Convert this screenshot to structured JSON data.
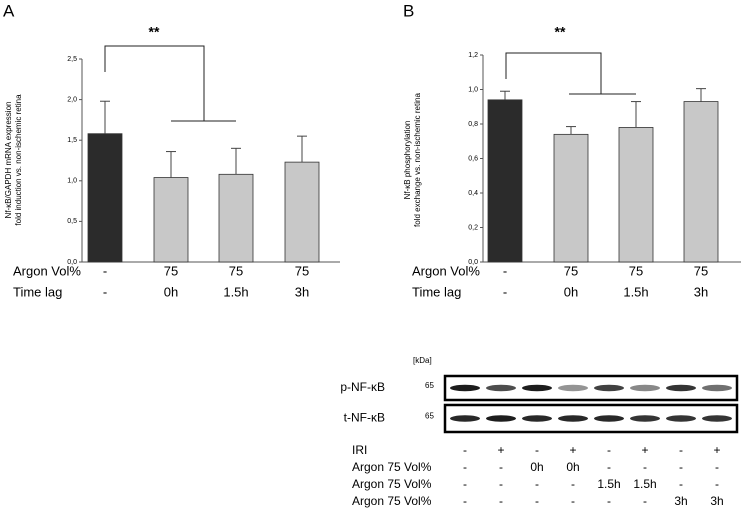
{
  "chart_data": [
    {
      "type": "bar",
      "panel": "A",
      "annotation": "**",
      "ylabel": [
        "Nf-κB/GAPDH mRNA expression",
        "fold induction vs. non-ischemic retina"
      ],
      "category_rows": [
        {
          "label": "Argon Vol%",
          "values": [
            "-",
            "75",
            "75",
            "75"
          ]
        },
        {
          "label": "Time lag",
          "values": [
            "-",
            "0h",
            "1.5h",
            "3h"
          ]
        }
      ],
      "values": [
        1.58,
        1.04,
        1.08,
        1.23
      ],
      "errors": [
        0.4,
        0.32,
        0.32,
        0.32
      ],
      "colors": [
        "#2b2b2b",
        "#c8c8c8",
        "#c8c8c8",
        "#c8c8c8"
      ],
      "ylim": [
        0,
        2.5
      ],
      "yticks": [
        {
          "value": 0,
          "label": "0,0"
        },
        {
          "value": 0.5,
          "label": "0,5"
        },
        {
          "value": 1,
          "label": "1,0"
        },
        {
          "value": 1.5,
          "label": "1,5"
        },
        {
          "value": 2,
          "label": "2,0"
        },
        {
          "value": 2.5,
          "label": "2,5"
        }
      ]
    },
    {
      "type": "bar",
      "panel": "B",
      "annotation": "**",
      "ylabel": [
        "Nf-κB phosphorylation",
        "fold exchange vs. non-ischemic retina"
      ],
      "category_rows": [
        {
          "label": "Argon Vol%",
          "values": [
            "-",
            "75",
            "75",
            "75"
          ]
        },
        {
          "label": "Time lag",
          "values": [
            "-",
            "0h",
            "1.5h",
            "3h"
          ]
        }
      ],
      "values": [
        0.94,
        0.74,
        0.78,
        0.93
      ],
      "errors": [
        0.05,
        0.045,
        0.15,
        0.075
      ],
      "colors": [
        "#2b2b2b",
        "#c8c8c8",
        "#c8c8c8",
        "#c8c8c8"
      ],
      "ylim": [
        0,
        1.2
      ],
      "yticks": [
        {
          "value": 0,
          "label": "0,0"
        },
        {
          "value": 0.2,
          "label": "0,2"
        },
        {
          "value": 0.4,
          "label": "0,4"
        },
        {
          "value": 0.6,
          "label": "0,6"
        },
        {
          "value": 0.8,
          "label": "0,8"
        },
        {
          "value": 1,
          "label": "1,0"
        },
        {
          "value": 1.2,
          "label": "1,2"
        }
      ]
    }
  ],
  "blot": {
    "unit": "[kDa]",
    "rows": [
      {
        "label": "p-NF-κB",
        "kda": 65
      },
      {
        "label": "t-NF-κB",
        "kda": 65
      }
    ],
    "conditions": [
      {
        "label": "IRI",
        "values": [
          "-",
          "+",
          "-",
          "+",
          "-",
          "+",
          "-",
          "+"
        ]
      },
      {
        "label": "Argon 75 Vol%",
        "values": [
          "-",
          "-",
          "0h",
          "0h",
          "-",
          "-",
          "-",
          "-"
        ]
      },
      {
        "label": "Argon 75 Vol%",
        "values": [
          "-",
          "-",
          "-",
          "-",
          "1.5h",
          "1.5h",
          "-",
          "-"
        ]
      },
      {
        "label": "Argon 75 Vol%",
        "values": [
          "-",
          "-",
          "-",
          "-",
          "-",
          "-",
          "3h",
          "3h"
        ]
      }
    ]
  }
}
